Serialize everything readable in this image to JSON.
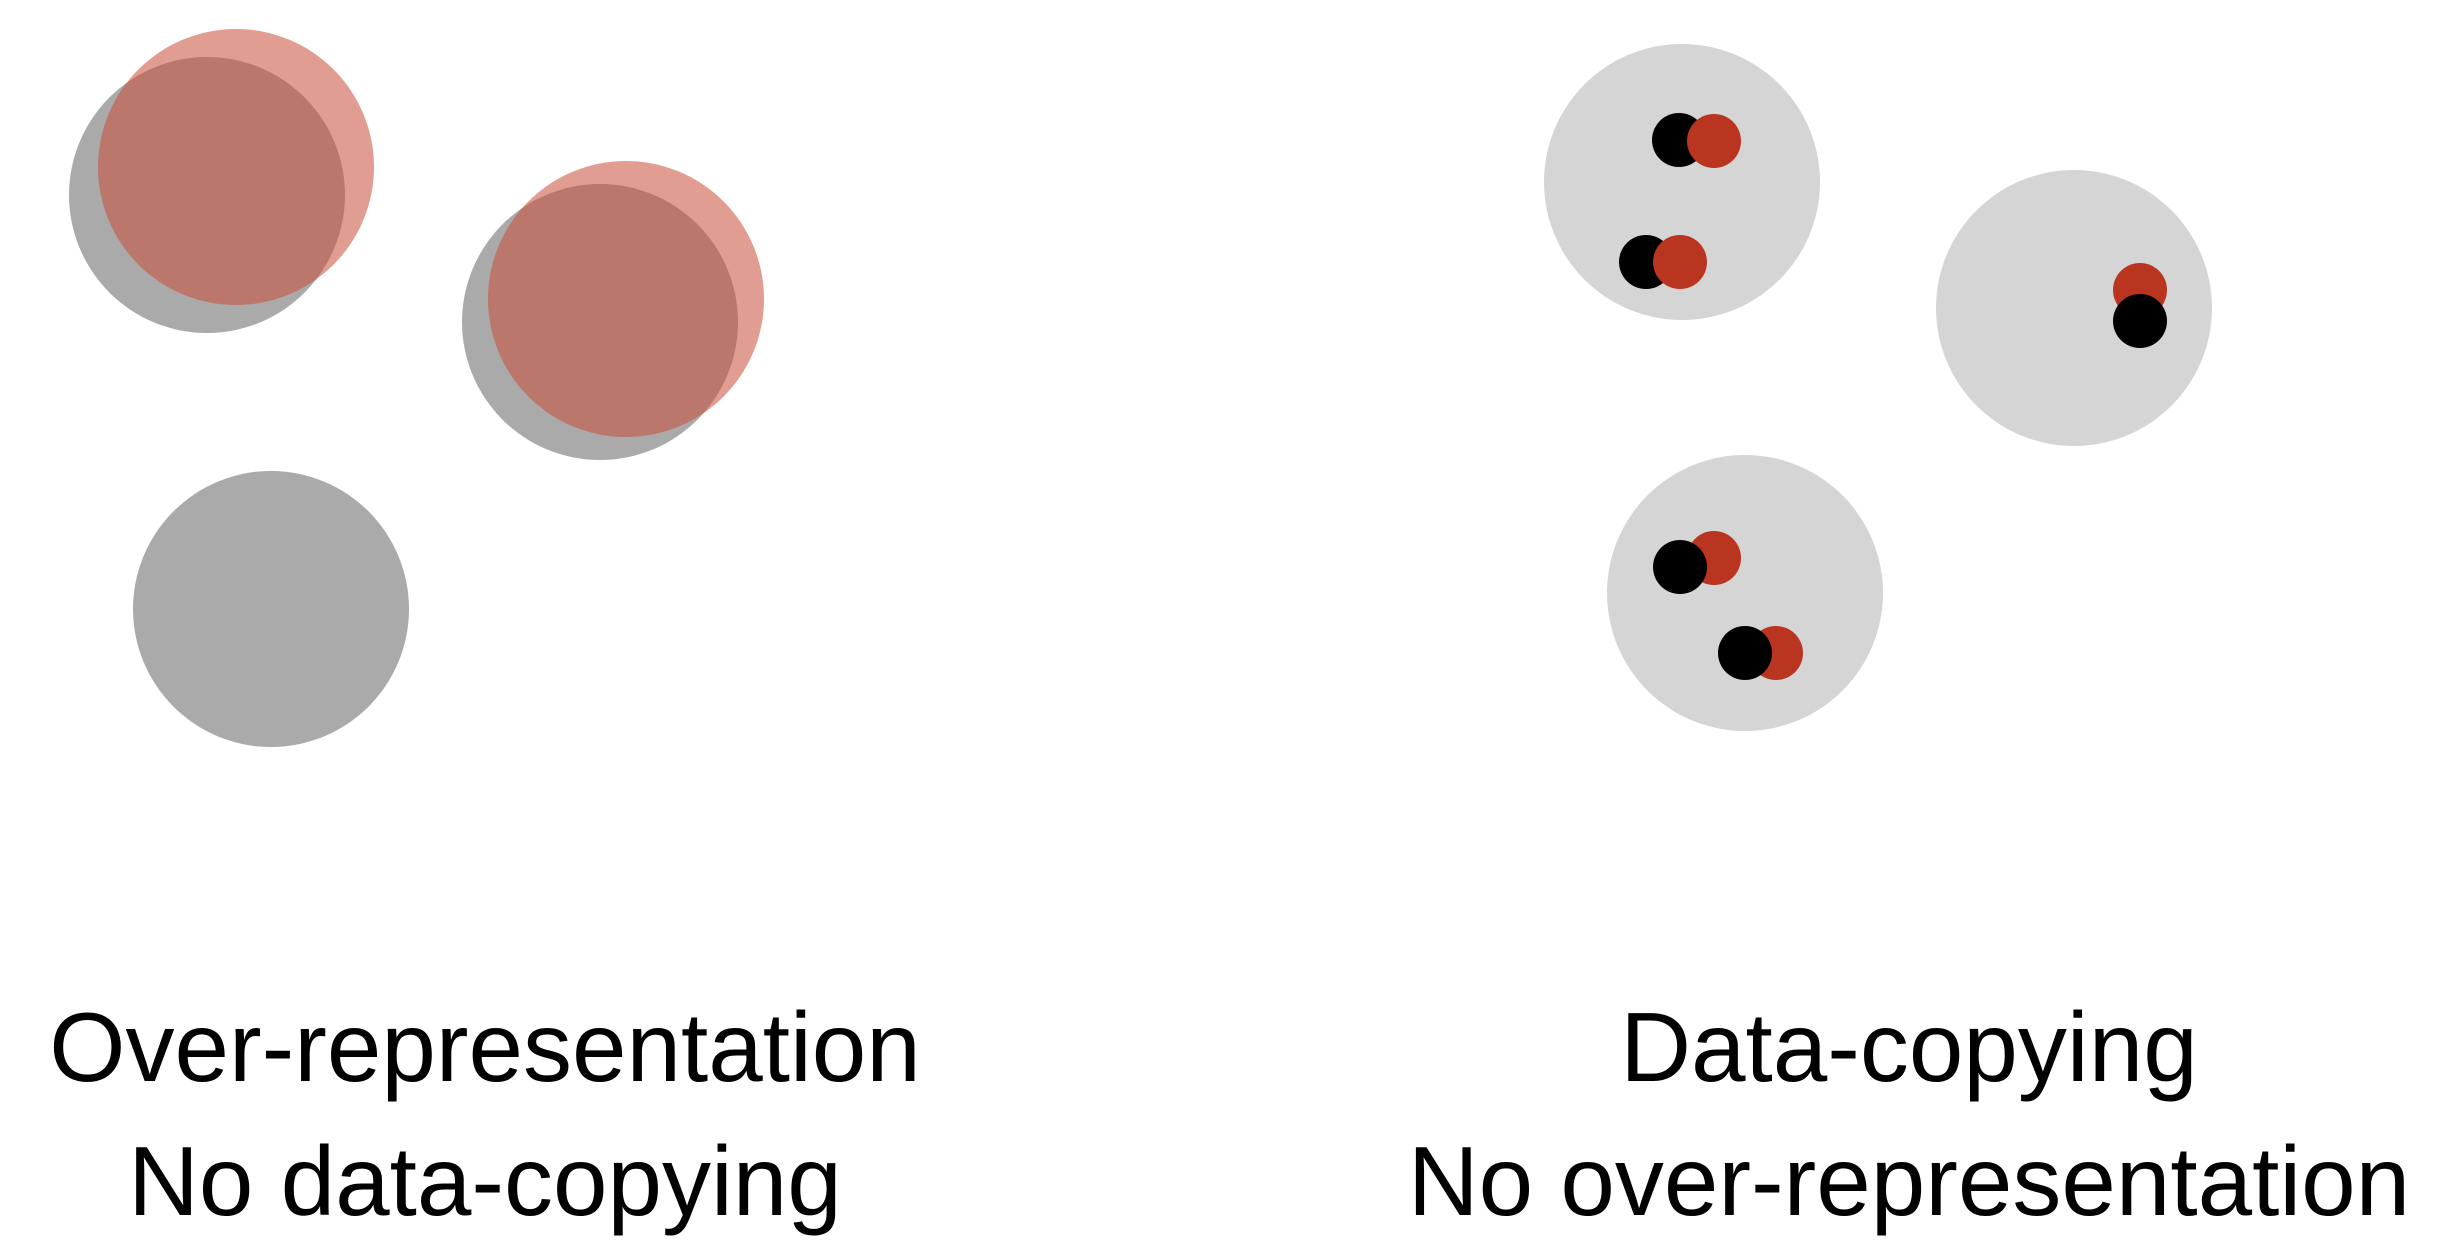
{
  "panels": {
    "left": {
      "caption_line1": "Over-representation",
      "caption_line2": "No data-copying"
    },
    "right": {
      "caption_line1": "Data-copying",
      "caption_line2": "No over-representation"
    }
  },
  "colors": {
    "large_gray": "#a9aaa9",
    "large_red_translucent": "rgba(203, 76, 56, 0.55)",
    "region_light_gray": "#d4d5d4",
    "point_black": "#000000",
    "point_red": "#b93520",
    "background": "#ffffff"
  }
}
